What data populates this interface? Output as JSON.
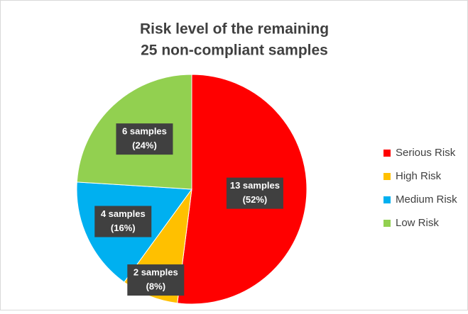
{
  "chart_data": {
    "type": "pie",
    "title": [
      "Risk level of the remaining",
      "25 non-compliant samples"
    ],
    "categories": [
      "Serious Risk",
      "High Risk",
      "Medium Risk",
      "Low Risk"
    ],
    "values": [
      13,
      2,
      4,
      6
    ],
    "value_labels": [
      [
        "13 samples",
        "(52%)"
      ],
      [
        "2 samples",
        "(8%)"
      ],
      [
        "4 samples",
        "(16%)"
      ],
      [
        "6 samples",
        "(24%)"
      ]
    ],
    "colors": [
      "#ff0000",
      "#ffc000",
      "#00b0f0",
      "#92d050"
    ],
    "legend": "right"
  }
}
